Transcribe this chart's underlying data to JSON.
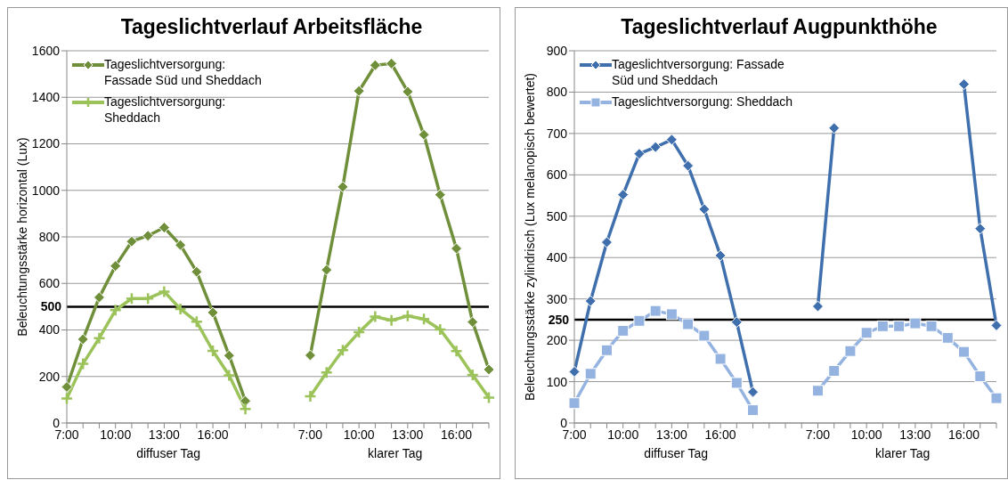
{
  "chart_data": [
    {
      "type": "line",
      "title": "Tageslichtverlauf Arbeitsfläche",
      "ylabel": "Beleuchtungsstärke horizontal (Lux)",
      "categories": [
        "7:00",
        null,
        null,
        "10:00",
        null,
        null,
        "13:00",
        null,
        null,
        "16:00",
        null,
        null,
        null,
        null,
        null,
        "7:00",
        null,
        null,
        "10:00",
        null,
        null,
        "13:00",
        null,
        null,
        "16:00",
        null,
        null
      ],
      "series": [
        {
          "name": "Tageslichtversorgung: Fassade Süd und Sheddach",
          "color": "#6f8f3a",
          "marker": "diamond",
          "values": [
            155,
            360,
            540,
            675,
            780,
            805,
            840,
            765,
            650,
            475,
            290,
            95,
            null,
            null,
            null,
            291,
            658,
            1015,
            1427,
            1538,
            1545,
            1424,
            1239,
            981,
            750,
            434,
            230
          ]
        },
        {
          "name": "Tageslichtversorgung: Sheddach",
          "color": "#9bc35a",
          "marker": "cross",
          "values": [
            105,
            255,
            365,
            485,
            535,
            535,
            565,
            490,
            435,
            310,
            205,
            60,
            null,
            null,
            null,
            115,
            217,
            313,
            390,
            457,
            441,
            460,
            447,
            402,
            309,
            207,
            109
          ]
        }
      ],
      "ylim": [
        0,
        1600
      ],
      "yticks": [
        0,
        200,
        400,
        600,
        800,
        1000,
        1200,
        1400,
        1600
      ],
      "grid": "y",
      "legend": "top left",
      "ref_lines": [
        {
          "axis": "y",
          "value": 500,
          "label": "500",
          "color": "#000000"
        }
      ],
      "annotations": [
        "diffuser Tag",
        "klarer Tag"
      ]
    },
    {
      "type": "line",
      "title": "Tageslichtverlauf Augpunkthöhe",
      "ylabel": "Beleuchtungsstärke zylindrisch (Lux melanopisch bewertet)",
      "categories": [
        "7:00",
        null,
        null,
        "10:00",
        null,
        null,
        "13:00",
        null,
        null,
        "16:00",
        null,
        null,
        null,
        null,
        null,
        "7:00",
        null,
        null,
        "10:00",
        null,
        null,
        "13:00",
        null,
        null,
        "16:00",
        null,
        null
      ],
      "series": [
        {
          "name": "Tageslichtversorgung: Fassade Süd und Sheddach",
          "color": "#3f6fad",
          "marker": "diamond",
          "values": [
            124,
            295,
            437,
            552,
            651,
            667,
            685,
            622,
            517,
            405,
            244,
            75,
            null,
            null,
            null,
            282,
            713,
            null,
            null,
            null,
            null,
            null,
            null,
            null,
            819,
            470,
            236
          ]
        },
        {
          "name": "Tageslichtversorgung: Sheddach",
          "color": "#95b3e0",
          "marker": "square",
          "values": [
            48,
            119,
            176,
            223,
            247,
            271,
            263,
            239,
            211,
            155,
            97,
            31,
            null,
            null,
            null,
            78,
            126,
            174,
            218,
            234,
            234,
            241,
            234,
            206,
            172,
            113,
            60
          ]
        }
      ],
      "ylim": [
        0,
        900
      ],
      "yticks": [
        0,
        100,
        200,
        300,
        400,
        500,
        600,
        700,
        800,
        900
      ],
      "grid": "y",
      "legend": "top left",
      "ref_lines": [
        {
          "axis": "y",
          "value": 250,
          "label": "250",
          "color": "#000000"
        }
      ],
      "annotations": [
        "diffuser Tag",
        "klarer Tag"
      ]
    }
  ]
}
